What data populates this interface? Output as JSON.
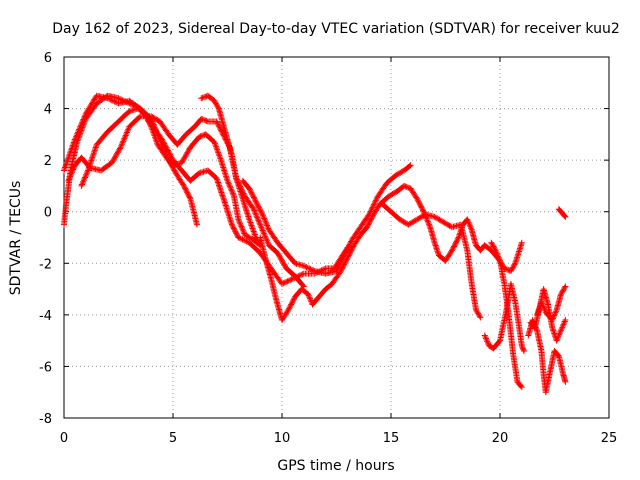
{
  "chart_data": {
    "type": "scatter",
    "title": "Day 162 of 2023, Sidereal Day-to-day VTEC variation (SDTVAR) for receiver kuu2",
    "xlabel": "GPS time / hours",
    "ylabel": "SDTVAR / TECUs",
    "xlim": [
      0,
      25
    ],
    "ylim": [
      -8,
      6
    ],
    "xticks": [
      0,
      5,
      10,
      15,
      20,
      25
    ],
    "yticks": [
      -8,
      -6,
      -4,
      -2,
      0,
      2,
      4,
      6
    ],
    "xtick_labels": [
      "0",
      "5",
      "10",
      "15",
      "20",
      "25"
    ],
    "ytick_labels": [
      "-8",
      "-6",
      "-4",
      "-2",
      "0",
      "2",
      "4",
      "6"
    ],
    "grid": true,
    "marker": "+",
    "color": "#ff0000",
    "series": [
      {
        "name": "track-1",
        "points": [
          [
            0,
            -0.5
          ],
          [
            0.1,
            0.3
          ],
          [
            0.3,
            1.6
          ],
          [
            0.6,
            2.7
          ],
          [
            1.0,
            3.6
          ],
          [
            1.5,
            4.2
          ],
          [
            2.0,
            4.5
          ],
          [
            2.5,
            4.4
          ],
          [
            3.0,
            4.2
          ],
          [
            3.5,
            4.0
          ],
          [
            4.0,
            3.6
          ],
          [
            4.3,
            3.0
          ],
          [
            4.8,
            2.0
          ],
          [
            5.2,
            1.4
          ],
          [
            5.5,
            1.0
          ],
          [
            5.8,
            0.5
          ],
          [
            6.1,
            -0.5
          ]
        ]
      },
      {
        "name": "track-2",
        "points": [
          [
            0,
            1.6
          ],
          [
            0.5,
            2.8
          ],
          [
            1.0,
            3.8
          ],
          [
            1.5,
            4.5
          ],
          [
            2.0,
            4.4
          ],
          [
            2.5,
            4.2
          ],
          [
            3.0,
            4.3
          ],
          [
            3.5,
            4.0
          ],
          [
            4.0,
            3.4
          ],
          [
            4.5,
            2.8
          ],
          [
            5.0,
            2.0
          ],
          [
            5.5,
            1.5
          ],
          [
            5.8,
            1.2
          ],
          [
            6.2,
            1.5
          ],
          [
            6.6,
            1.6
          ],
          [
            7.0,
            1.3
          ],
          [
            7.4,
            0.3
          ],
          [
            7.7,
            -0.5
          ],
          [
            8.0,
            -1.0
          ],
          [
            8.5,
            -1.2
          ],
          [
            9.0,
            -1.6
          ],
          [
            9.5,
            -2.2
          ],
          [
            10.0,
            -2.8
          ],
          [
            10.5,
            -2.6
          ],
          [
            11.0,
            -2.4
          ],
          [
            11.5,
            -2.4
          ],
          [
            12.0,
            -2.2
          ],
          [
            12.4,
            -2.2
          ],
          [
            12.7,
            -1.8
          ],
          [
            13.0,
            -1.4
          ]
        ]
      },
      {
        "name": "track-3",
        "points": [
          [
            0.2,
            1.2
          ],
          [
            0.5,
            1.8
          ],
          [
            0.8,
            2.1
          ],
          [
            1.2,
            1.7
          ],
          [
            1.7,
            1.6
          ],
          [
            2.2,
            1.9
          ],
          [
            2.6,
            2.5
          ],
          [
            3.0,
            3.3
          ],
          [
            3.5,
            3.7
          ],
          [
            4.0,
            3.7
          ],
          [
            4.4,
            3.5
          ],
          [
            4.8,
            3.0
          ],
          [
            5.2,
            2.6
          ],
          [
            5.6,
            3.0
          ],
          [
            6.0,
            3.3
          ],
          [
            6.3,
            3.6
          ],
          [
            6.6,
            3.5
          ],
          [
            7.0,
            3.5
          ],
          [
            7.3,
            3.0
          ],
          [
            7.6,
            2.5
          ],
          [
            7.9,
            1.3
          ],
          [
            8.3,
            0.6
          ],
          [
            8.7,
            0.1
          ],
          [
            9.0,
            -0.5
          ],
          [
            9.4,
            -1.3
          ],
          [
            9.8,
            -1.6
          ],
          [
            10.2,
            -2.2
          ],
          [
            10.6,
            -2.5
          ],
          [
            11.0,
            -2.9
          ]
        ]
      },
      {
        "name": "track-4",
        "points": [
          [
            0.8,
            1.0
          ],
          [
            1.1,
            1.6
          ],
          [
            1.5,
            2.6
          ],
          [
            2.0,
            3.1
          ],
          [
            2.5,
            3.5
          ],
          [
            3.0,
            3.9
          ],
          [
            3.4,
            4.0
          ],
          [
            3.7,
            3.8
          ],
          [
            4.0,
            3.3
          ],
          [
            4.3,
            2.6
          ],
          [
            4.7,
            2.1
          ],
          [
            5.0,
            1.8
          ],
          [
            5.4,
            1.9
          ],
          [
            5.8,
            2.5
          ],
          [
            6.2,
            2.9
          ],
          [
            6.5,
            3.0
          ],
          [
            6.9,
            2.7
          ],
          [
            7.2,
            2.0
          ],
          [
            7.5,
            1.2
          ],
          [
            7.8,
            0.6
          ],
          [
            8.0,
            -0.3
          ],
          [
            8.3,
            -0.9
          ],
          [
            8.7,
            -1.1
          ],
          [
            9.0,
            -1.3
          ]
        ]
      },
      {
        "name": "track-5",
        "points": [
          [
            6.3,
            4.4
          ],
          [
            6.6,
            4.5
          ],
          [
            6.9,
            4.3
          ],
          [
            7.1,
            4.0
          ],
          [
            7.3,
            3.4
          ],
          [
            7.5,
            2.8
          ],
          [
            7.7,
            2.2
          ],
          [
            7.9,
            1.3
          ],
          [
            8.2,
            0.5
          ],
          [
            8.5,
            -0.3
          ],
          [
            8.8,
            -1.0
          ],
          [
            9.0,
            -1.3
          ]
        ]
      },
      {
        "name": "track-6",
        "points": [
          [
            8.2,
            1.2
          ],
          [
            8.5,
            0.9
          ],
          [
            8.8,
            0.4
          ],
          [
            9.1,
            -0.1
          ],
          [
            9.4,
            -0.7
          ],
          [
            9.8,
            -1.2
          ],
          [
            10.2,
            -1.6
          ],
          [
            10.6,
            -2.0
          ],
          [
            11.0,
            -2.1
          ],
          [
            11.5,
            -2.3
          ],
          [
            12.0,
            -2.4
          ],
          [
            12.5,
            -2.3
          ],
          [
            12.8,
            -1.8
          ],
          [
            13.2,
            -1.1
          ],
          [
            13.6,
            -0.6
          ],
          [
            14.0,
            -0.1
          ],
          [
            14.4,
            0.6
          ],
          [
            14.8,
            1.1
          ],
          [
            15.2,
            1.4
          ],
          [
            15.6,
            1.6
          ],
          [
            15.9,
            1.8
          ]
        ]
      },
      {
        "name": "track-7",
        "points": [
          [
            9.0,
            -1.0
          ],
          [
            9.3,
            -2.0
          ],
          [
            9.5,
            -2.6
          ],
          [
            9.7,
            -3.3
          ],
          [
            9.9,
            -3.9
          ],
          [
            10.0,
            -4.2
          ],
          [
            10.3,
            -3.8
          ],
          [
            10.6,
            -3.3
          ],
          [
            10.9,
            -3.0
          ],
          [
            11.2,
            -3.2
          ],
          [
            11.4,
            -3.6
          ],
          [
            11.7,
            -3.3
          ],
          [
            12.0,
            -3.0
          ],
          [
            12.3,
            -2.8
          ],
          [
            12.7,
            -2.3
          ],
          [
            13.0,
            -1.8
          ],
          [
            13.3,
            -1.3
          ],
          [
            13.6,
            -0.9
          ],
          [
            13.9,
            -0.6
          ],
          [
            14.2,
            -0.1
          ],
          [
            14.5,
            0.3
          ],
          [
            14.9,
            0.6
          ],
          [
            15.3,
            0.8
          ],
          [
            15.6,
            1.0
          ],
          [
            15.9,
            0.9
          ],
          [
            16.2,
            0.5
          ],
          [
            16.5,
            0.0
          ],
          [
            16.8,
            -0.6
          ],
          [
            17.0,
            -1.2
          ],
          [
            17.2,
            -1.7
          ],
          [
            17.5,
            -1.9
          ],
          [
            17.8,
            -1.5
          ],
          [
            18.1,
            -1.0
          ],
          [
            18.3,
            -0.5
          ],
          [
            18.5,
            -0.3
          ],
          [
            18.7,
            -0.7
          ],
          [
            18.9,
            -1.3
          ],
          [
            19.1,
            -1.5
          ],
          [
            19.3,
            -1.3
          ],
          [
            19.6,
            -1.5
          ],
          [
            19.9,
            -1.8
          ],
          [
            20.2,
            -2.2
          ],
          [
            20.5,
            -2.3
          ],
          [
            20.7,
            -2.0
          ],
          [
            21.0,
            -1.2
          ]
        ]
      },
      {
        "name": "track-8",
        "points": [
          [
            14.6,
            0.3
          ],
          [
            15.0,
            0.0
          ],
          [
            15.4,
            -0.3
          ],
          [
            15.8,
            -0.5
          ],
          [
            16.2,
            -0.3
          ],
          [
            16.6,
            -0.1
          ],
          [
            17.0,
            -0.2
          ],
          [
            17.4,
            -0.4
          ],
          [
            17.8,
            -0.6
          ],
          [
            18.2,
            -0.5
          ],
          [
            18.5,
            -1.5
          ],
          [
            18.7,
            -2.8
          ],
          [
            18.9,
            -3.8
          ],
          [
            19.1,
            -4.1
          ]
        ]
      },
      {
        "name": "track-9",
        "points": [
          [
            19.3,
            -4.8
          ],
          [
            19.5,
            -5.2
          ],
          [
            19.7,
            -5.3
          ],
          [
            20.0,
            -5.0
          ],
          [
            20.3,
            -3.8
          ],
          [
            20.5,
            -2.8
          ],
          [
            20.7,
            -3.5
          ],
          [
            20.9,
            -4.6
          ],
          [
            21.0,
            -5.2
          ],
          [
            21.1,
            -5.4
          ]
        ]
      },
      {
        "name": "track-10",
        "points": [
          [
            19.6,
            -1.2
          ],
          [
            19.8,
            -1.5
          ],
          [
            20.0,
            -1.9
          ],
          [
            20.2,
            -2.8
          ],
          [
            20.4,
            -4.0
          ],
          [
            20.6,
            -5.5
          ],
          [
            20.8,
            -6.6
          ],
          [
            21.0,
            -6.8
          ]
        ]
      },
      {
        "name": "track-11",
        "points": [
          [
            21.3,
            -4.8
          ],
          [
            21.5,
            -4.2
          ],
          [
            21.7,
            -4.6
          ],
          [
            21.9,
            -5.4
          ],
          [
            22.0,
            -6.3
          ],
          [
            22.1,
            -7.0
          ],
          [
            22.3,
            -6.2
          ],
          [
            22.5,
            -5.4
          ],
          [
            22.7,
            -5.6
          ],
          [
            22.9,
            -6.3
          ],
          [
            23.0,
            -6.6
          ]
        ]
      },
      {
        "name": "track-12",
        "points": [
          [
            21.4,
            -4.3
          ],
          [
            21.6,
            -4.5
          ],
          [
            21.8,
            -3.8
          ],
          [
            22.0,
            -3.0
          ],
          [
            22.2,
            -3.6
          ],
          [
            22.4,
            -4.5
          ],
          [
            22.6,
            -5.0
          ],
          [
            22.8,
            -4.6
          ],
          [
            23.0,
            -4.2
          ]
        ]
      },
      {
        "name": "track-13",
        "points": [
          [
            21.7,
            -4.0
          ],
          [
            21.9,
            -3.5
          ],
          [
            22.1,
            -3.9
          ],
          [
            22.4,
            -4.2
          ],
          [
            22.6,
            -3.8
          ],
          [
            22.8,
            -3.2
          ],
          [
            23.0,
            -2.9
          ]
        ]
      },
      {
        "name": "track-14",
        "points": [
          [
            22.7,
            0.1
          ],
          [
            22.8,
            0.0
          ],
          [
            22.9,
            -0.1
          ],
          [
            23.0,
            -0.2
          ]
        ]
      }
    ]
  }
}
